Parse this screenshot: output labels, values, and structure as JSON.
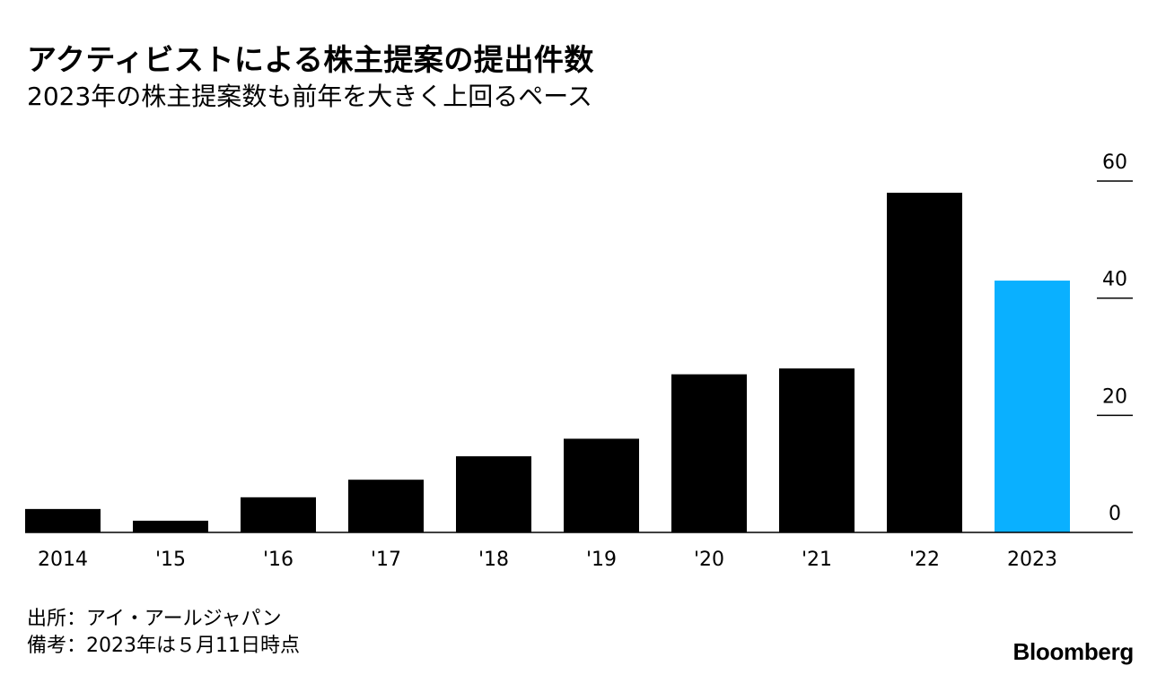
{
  "title": "アクティビストによる株主提案の提出件数",
  "subtitle": "2023年の株主提案数も前年を大きく上回るペース",
  "footnotes": {
    "source": "出所：アイ・アールジャパン",
    "note": "備考：2023年は５月11日時点"
  },
  "brand": "Bloomberg",
  "colors": {
    "bar": "#000000",
    "highlight": "#0ab0ff",
    "text": "#000000"
  },
  "chart_data": {
    "type": "bar",
    "title": "アクティビストによる株主提案の提出件数",
    "categories": [
      "2014",
      "'15",
      "'16",
      "'17",
      "'18",
      "'19",
      "'20",
      "'21",
      "'22",
      "2023"
    ],
    "values": [
      4,
      2,
      6,
      9,
      13,
      16,
      27,
      28,
      58,
      43
    ],
    "highlight_index": 9,
    "ylim": [
      0,
      60
    ],
    "yticks": [
      0,
      20,
      40,
      60
    ],
    "y_axis_side": "right",
    "xlabel": "",
    "ylabel": ""
  }
}
